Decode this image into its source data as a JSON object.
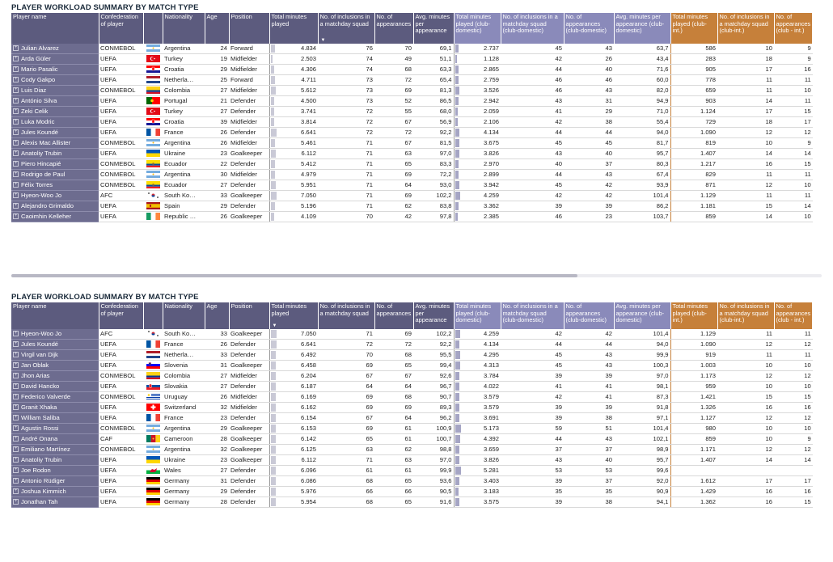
{
  "panels": [
    {
      "title": "PLAYER WORKLOAD SUMMARY BY MATCH TYPE",
      "headers": [
        "Player name",
        "Confederation of player",
        "",
        "Nationality",
        "Age",
        "Position",
        "Total minutes played",
        "No. of inclusions in a matchday squad",
        "No. of appearances",
        "Avg. minutes per appearance",
        "Total minutes played (club-domestic)",
        "No. of inclusions in a matchday squad (club-domestic)",
        "No. of appearances (club-domestic)",
        "Avg. minutes per appearance (club-domestic)",
        "Total minutes played (club-int.)",
        "No. of inclusions in a matchday squad (club-int.)",
        "No. of appearances (club - int.)"
      ],
      "sort_column": 7,
      "rows": [
        [
          "Julian Alvarez",
          "CONMEBOL",
          "argentina",
          "Argentina",
          "24",
          "Forward",
          "4.834",
          "76",
          "70",
          "69,1",
          "2.737",
          "45",
          "43",
          "63,7",
          "586",
          "10",
          "9"
        ],
        [
          "Arda Güler",
          "UEFA",
          "turkey",
          "Turkey",
          "19",
          "Midfielder",
          "2.503",
          "74",
          "49",
          "51,1",
          "1.128",
          "42",
          "26",
          "43,4",
          "283",
          "18",
          "9"
        ],
        [
          "Mario Pasalic",
          "UEFA",
          "croatia",
          "Croatia",
          "29",
          "Midfielder",
          "4.306",
          "74",
          "68",
          "63,3",
          "2.865",
          "44",
          "40",
          "71,6",
          "905",
          "17",
          "16"
        ],
        [
          "Cody Gakpo",
          "UEFA",
          "netherlands",
          "Netherla…",
          "25",
          "Forward",
          "4.711",
          "73",
          "72",
          "65,4",
          "2.759",
          "46",
          "46",
          "60,0",
          "778",
          "11",
          "11"
        ],
        [
          "Luis Diaz",
          "CONMEBOL",
          "colombia",
          "Colombia",
          "27",
          "Midfielder",
          "5.612",
          "73",
          "69",
          "81,3",
          "3.526",
          "46",
          "43",
          "82,0",
          "659",
          "11",
          "10"
        ],
        [
          "António Silva",
          "UEFA",
          "portugal",
          "Portugal",
          "21",
          "Defender",
          "4.500",
          "73",
          "52",
          "86,5",
          "2.942",
          "43",
          "31",
          "94,9",
          "903",
          "14",
          "11"
        ],
        [
          "Zeki Celik",
          "UEFA",
          "turkey",
          "Turkey",
          "27",
          "Defender",
          "3.741",
          "72",
          "55",
          "68,0",
          "2.059",
          "41",
          "29",
          "71,0",
          "1.124",
          "17",
          "15"
        ],
        [
          "Luka Modric",
          "UEFA",
          "croatia",
          "Croatia",
          "39",
          "Midfielder",
          "3.814",
          "72",
          "67",
          "56,9",
          "2.106",
          "42",
          "38",
          "55,4",
          "729",
          "18",
          "17"
        ],
        [
          "Jules Koundé",
          "UEFA",
          "france",
          "France",
          "26",
          "Defender",
          "6.641",
          "72",
          "72",
          "92,2",
          "4.134",
          "44",
          "44",
          "94,0",
          "1.090",
          "12",
          "12"
        ],
        [
          "Alexis Mac Allister",
          "CONMEBOL",
          "argentina",
          "Argentina",
          "26",
          "Midfielder",
          "5.461",
          "71",
          "67",
          "81,5",
          "3.675",
          "45",
          "45",
          "81,7",
          "819",
          "10",
          "9"
        ],
        [
          "Anatoliy Trubin",
          "UEFA",
          "ukraine",
          "Ukraine",
          "23",
          "Goalkeeper",
          "6.112",
          "71",
          "63",
          "97,0",
          "3.826",
          "43",
          "40",
          "95,7",
          "1.407",
          "14",
          "14"
        ],
        [
          "Piero Hincapié",
          "CONMEBOL",
          "ecuador",
          "Ecuador",
          "22",
          "Defender",
          "5.412",
          "71",
          "65",
          "83,3",
          "2.970",
          "40",
          "37",
          "80,3",
          "1.217",
          "16",
          "15"
        ],
        [
          "Rodrigo de Paul",
          "CONMEBOL",
          "argentina",
          "Argentina",
          "30",
          "Midfielder",
          "4.979",
          "71",
          "69",
          "72,2",
          "2.899",
          "44",
          "43",
          "67,4",
          "829",
          "11",
          "11"
        ],
        [
          "Félix Torres",
          "CONMEBOL",
          "ecuador",
          "Ecuador",
          "27",
          "Defender",
          "5.951",
          "71",
          "64",
          "93,0",
          "3.942",
          "45",
          "42",
          "93,9",
          "871",
          "12",
          "10"
        ],
        [
          "Hyeon-Woo Jo",
          "AFC",
          "korea",
          "South Ko…",
          "33",
          "Goalkeeper",
          "7.050",
          "71",
          "69",
          "102,2",
          "4.259",
          "42",
          "42",
          "101,4",
          "1.129",
          "11",
          "11"
        ],
        [
          "Alejandro Grimaldo",
          "UEFA",
          "spain",
          "Spain",
          "29",
          "Defender",
          "5.196",
          "71",
          "62",
          "83,8",
          "3.362",
          "39",
          "39",
          "86,2",
          "1.181",
          "15",
          "14"
        ],
        [
          "Caoimhin Kelleher",
          "UEFA",
          "ireland",
          "Republic …",
          "26",
          "Goalkeeper",
          "4.109",
          "70",
          "42",
          "97,8",
          "2.385",
          "46",
          "23",
          "103,7",
          "859",
          "14",
          "10"
        ]
      ]
    },
    {
      "title": "PLAYER WORKLOAD SUMMARY BY MATCH TYPE",
      "headers": [
        "Player name",
        "Confederation of player",
        "",
        "Nationality",
        "Age",
        "Position",
        "Total minutes played",
        "No. of inclusions in a matchday squad",
        "No. of appearances",
        "Avg. minutes per appearance",
        "Total minutes played (club-domestic)",
        "No. of inclusions in a matchday squad (club-domestic)",
        "No. of appearances (club-domestic)",
        "Avg. minutes per appearance (club-domestic)",
        "Total minutes played (club-int.)",
        "No. of inclusions in a matchday squad (club-int.)",
        "No. of appearances (club - int.)"
      ],
      "sort_column": 6,
      "rows": [
        [
          "Hyeon-Woo Jo",
          "AFC",
          "korea",
          "South Ko…",
          "33",
          "Goalkeeper",
          "7.050",
          "71",
          "69",
          "102,2",
          "4.259",
          "42",
          "42",
          "101,4",
          "1.129",
          "11",
          "11"
        ],
        [
          "Jules Koundé",
          "UEFA",
          "france",
          "France",
          "26",
          "Defender",
          "6.641",
          "72",
          "72",
          "92,2",
          "4.134",
          "44",
          "44",
          "94,0",
          "1.090",
          "12",
          "12"
        ],
        [
          "Virgil van Dijk",
          "UEFA",
          "netherlands",
          "Netherla…",
          "33",
          "Defender",
          "6.492",
          "70",
          "68",
          "95,5",
          "4.295",
          "45",
          "43",
          "99,9",
          "919",
          "11",
          "11"
        ],
        [
          "Jan Oblak",
          "UEFA",
          "slovenia",
          "Slovenia",
          "31",
          "Goalkeeper",
          "6.458",
          "69",
          "65",
          "99,4",
          "4.313",
          "45",
          "43",
          "100,3",
          "1.003",
          "10",
          "10"
        ],
        [
          "Jhon Arias",
          "CONMEBOL",
          "colombia",
          "Colombia",
          "27",
          "Midfielder",
          "6.204",
          "67",
          "67",
          "92,6",
          "3.784",
          "39",
          "39",
          "97,0",
          "1.173",
          "12",
          "12"
        ],
        [
          "David Hancko",
          "UEFA",
          "slovakia",
          "Slovakia",
          "27",
          "Defender",
          "6.187",
          "64",
          "64",
          "96,7",
          "4.022",
          "41",
          "41",
          "98,1",
          "959",
          "10",
          "10"
        ],
        [
          "Federico Valverde",
          "CONMEBOL",
          "uruguay",
          "Uruguay",
          "26",
          "Midfielder",
          "6.169",
          "69",
          "68",
          "90,7",
          "3.579",
          "42",
          "41",
          "87,3",
          "1.421",
          "15",
          "15"
        ],
        [
          "Granit Xhaka",
          "UEFA",
          "switzerland",
          "Switzerland",
          "32",
          "Midfielder",
          "6.162",
          "69",
          "69",
          "89,3",
          "3.579",
          "39",
          "39",
          "91,8",
          "1.326",
          "16",
          "16"
        ],
        [
          "William Saliba",
          "UEFA",
          "france",
          "France",
          "23",
          "Defender",
          "6.154",
          "67",
          "64",
          "96,2",
          "3.691",
          "39",
          "38",
          "97,1",
          "1.127",
          "12",
          "12"
        ],
        [
          "Agustin Rossi",
          "CONMEBOL",
          "argentina",
          "Argentina",
          "29",
          "Goalkeeper",
          "6.153",
          "69",
          "61",
          "100,9",
          "5.173",
          "59",
          "51",
          "101,4",
          "980",
          "10",
          "10"
        ],
        [
          "André Onana",
          "CAF",
          "cameroon",
          "Cameroon",
          "28",
          "Goalkeeper",
          "6.142",
          "65",
          "61",
          "100,7",
          "4.392",
          "44",
          "43",
          "102,1",
          "859",
          "10",
          "9"
        ],
        [
          "Emiliano Martínez",
          "CONMEBOL",
          "argentina",
          "Argentina",
          "32",
          "Goalkeeper",
          "6.125",
          "63",
          "62",
          "98,8",
          "3.659",
          "37",
          "37",
          "98,9",
          "1.171",
          "12",
          "12"
        ],
        [
          "Anatoliy Trubin",
          "UEFA",
          "ukraine",
          "Ukraine",
          "23",
          "Goalkeeper",
          "6.112",
          "71",
          "63",
          "97,0",
          "3.826",
          "43",
          "40",
          "95,7",
          "1.407",
          "14",
          "14"
        ],
        [
          "Joe Rodon",
          "UEFA",
          "wales",
          "Wales",
          "27",
          "Defender",
          "6.096",
          "61",
          "61",
          "99,9",
          "5.281",
          "53",
          "53",
          "99,6",
          "",
          "",
          ""
        ],
        [
          "Antonio Rüdiger",
          "UEFA",
          "germany",
          "Germany",
          "31",
          "Defender",
          "6.086",
          "68",
          "65",
          "93,6",
          "3.403",
          "39",
          "37",
          "92,0",
          "1.612",
          "17",
          "17"
        ],
        [
          "Joshua Kimmich",
          "UEFA",
          "germany",
          "Germany",
          "29",
          "Defender",
          "5.976",
          "66",
          "66",
          "90,5",
          "3.183",
          "35",
          "35",
          "90,9",
          "1.429",
          "16",
          "16"
        ],
        [
          "Jonathan Tah",
          "UEFA",
          "germany",
          "Germany",
          "28",
          "Defender",
          "5.954",
          "68",
          "65",
          "91,6",
          "3.575",
          "39",
          "38",
          "94,1",
          "1.362",
          "16",
          "15"
        ]
      ]
    }
  ]
}
